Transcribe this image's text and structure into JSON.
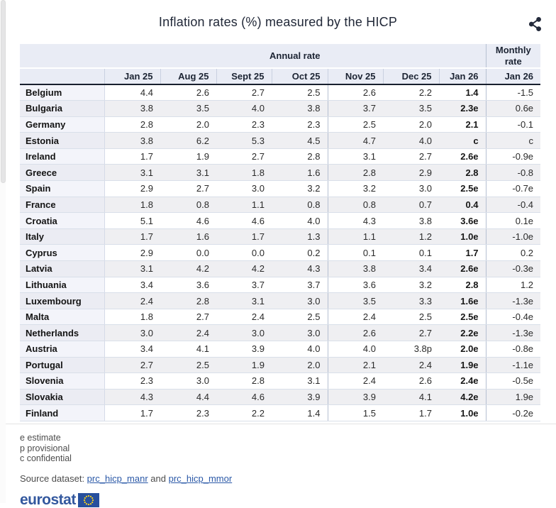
{
  "title": "Inflation rates (%) measured by the HICP",
  "chart_data": {
    "type": "table",
    "title": "Inflation rates (%) measured by the HICP",
    "group_headers": {
      "annual": "Annual rate",
      "monthly": "Monthly rate"
    },
    "columns": [
      "Jan 25",
      "Aug 25",
      "Sept 25",
      "Oct 25",
      "Nov 25",
      "Dec 25",
      "Jan 26"
    ],
    "monthly_column": "Jan 26",
    "rows": [
      {
        "country": "Belgium",
        "values": [
          "4.4",
          "2.6",
          "2.7",
          "2.5",
          "2.6",
          "2.2",
          "1.4",
          "-1.5"
        ]
      },
      {
        "country": "Bulgaria",
        "values": [
          "3.8",
          "3.5",
          "4.0",
          "3.8",
          "3.7",
          "3.5",
          "2.3e",
          "0.6e"
        ]
      },
      {
        "country": "Germany",
        "values": [
          "2.8",
          "2.0",
          "2.3",
          "2.3",
          "2.5",
          "2.0",
          "2.1",
          "-0.1"
        ]
      },
      {
        "country": "Estonia",
        "values": [
          "3.8",
          "6.2",
          "5.3",
          "4.5",
          "4.7",
          "4.0",
          "c",
          "c"
        ]
      },
      {
        "country": "Ireland",
        "values": [
          "1.7",
          "1.9",
          "2.7",
          "2.8",
          "3.1",
          "2.7",
          "2.6e",
          "-0.9e"
        ]
      },
      {
        "country": "Greece",
        "values": [
          "3.1",
          "3.1",
          "1.8",
          "1.6",
          "2.8",
          "2.9",
          "2.8",
          "-0.8"
        ]
      },
      {
        "country": "Spain",
        "values": [
          "2.9",
          "2.7",
          "3.0",
          "3.2",
          "3.2",
          "3.0",
          "2.5e",
          "-0.7e"
        ]
      },
      {
        "country": "France",
        "values": [
          "1.8",
          "0.8",
          "1.1",
          "0.8",
          "0.8",
          "0.7",
          "0.4",
          "-0.4"
        ]
      },
      {
        "country": "Croatia",
        "values": [
          "5.1",
          "4.6",
          "4.6",
          "4.0",
          "4.3",
          "3.8",
          "3.6e",
          "0.1e"
        ]
      },
      {
        "country": "Italy",
        "values": [
          "1.7",
          "1.6",
          "1.7",
          "1.3",
          "1.1",
          "1.2",
          "1.0e",
          "-1.0e"
        ]
      },
      {
        "country": "Cyprus",
        "values": [
          "2.9",
          "0.0",
          "0.0",
          "0.2",
          "0.1",
          "0.1",
          "1.7",
          "0.2"
        ]
      },
      {
        "country": "Latvia",
        "values": [
          "3.1",
          "4.2",
          "4.2",
          "4.3",
          "3.8",
          "3.4",
          "2.6e",
          "-0.3e"
        ]
      },
      {
        "country": "Lithuania",
        "values": [
          "3.4",
          "3.6",
          "3.7",
          "3.7",
          "3.6",
          "3.2",
          "2.8",
          "1.2"
        ]
      },
      {
        "country": "Luxembourg",
        "values": [
          "2.4",
          "2.8",
          "3.1",
          "3.0",
          "3.5",
          "3.3",
          "1.6e",
          "-1.3e"
        ]
      },
      {
        "country": "Malta",
        "values": [
          "1.8",
          "2.7",
          "2.4",
          "2.5",
          "2.4",
          "2.5",
          "2.5e",
          "-0.4e"
        ]
      },
      {
        "country": "Netherlands",
        "values": [
          "3.0",
          "2.4",
          "3.0",
          "3.0",
          "2.6",
          "2.7",
          "2.2e",
          "-1.3e"
        ]
      },
      {
        "country": "Austria",
        "values": [
          "3.4",
          "4.1",
          "3.9",
          "4.0",
          "4.0",
          "3.8p",
          "2.0e",
          "-0.8e"
        ]
      },
      {
        "country": "Portugal",
        "values": [
          "2.7",
          "2.5",
          "1.9",
          "2.0",
          "2.1",
          "2.4",
          "1.9e",
          "-1.1e"
        ]
      },
      {
        "country": "Slovenia",
        "values": [
          "2.3",
          "3.0",
          "2.8",
          "3.1",
          "2.4",
          "2.6",
          "2.4e",
          "-0.5e"
        ]
      },
      {
        "country": "Slovakia",
        "values": [
          "4.3",
          "4.4",
          "4.6",
          "3.9",
          "3.9",
          "4.1",
          "4.2e",
          "1.9e"
        ]
      },
      {
        "country": "Finland",
        "values": [
          "1.7",
          "2.3",
          "2.2",
          "1.4",
          "1.5",
          "1.7",
          "1.0e",
          "-0.2e"
        ]
      }
    ],
    "flag_legend": [
      "e estimate",
      "p provisional",
      "c confidential"
    ]
  },
  "footnotes": [
    "e estimate",
    "p provisional",
    "c confidential"
  ],
  "source": {
    "prefix": "Source dataset: ",
    "link1": "prc_hicp_manr",
    "conjunction": " and ",
    "link2": "prc_hicp_mmor"
  },
  "logo": {
    "text": "eurostat"
  },
  "icons": {
    "share": "share-icon",
    "eu_flag": "eu-flag-icon"
  },
  "colors": {
    "header_bg": "#e9ecf5",
    "header_dark_border": "#181f2e",
    "row_alt_bg": "#efeff2",
    "country_col_bg": "#f3f4fa",
    "link_blue": "#2a58a7",
    "logo_blue": "#33589e",
    "flag_blue": "#27509d",
    "flag_star_yellow": "#ffd617"
  }
}
